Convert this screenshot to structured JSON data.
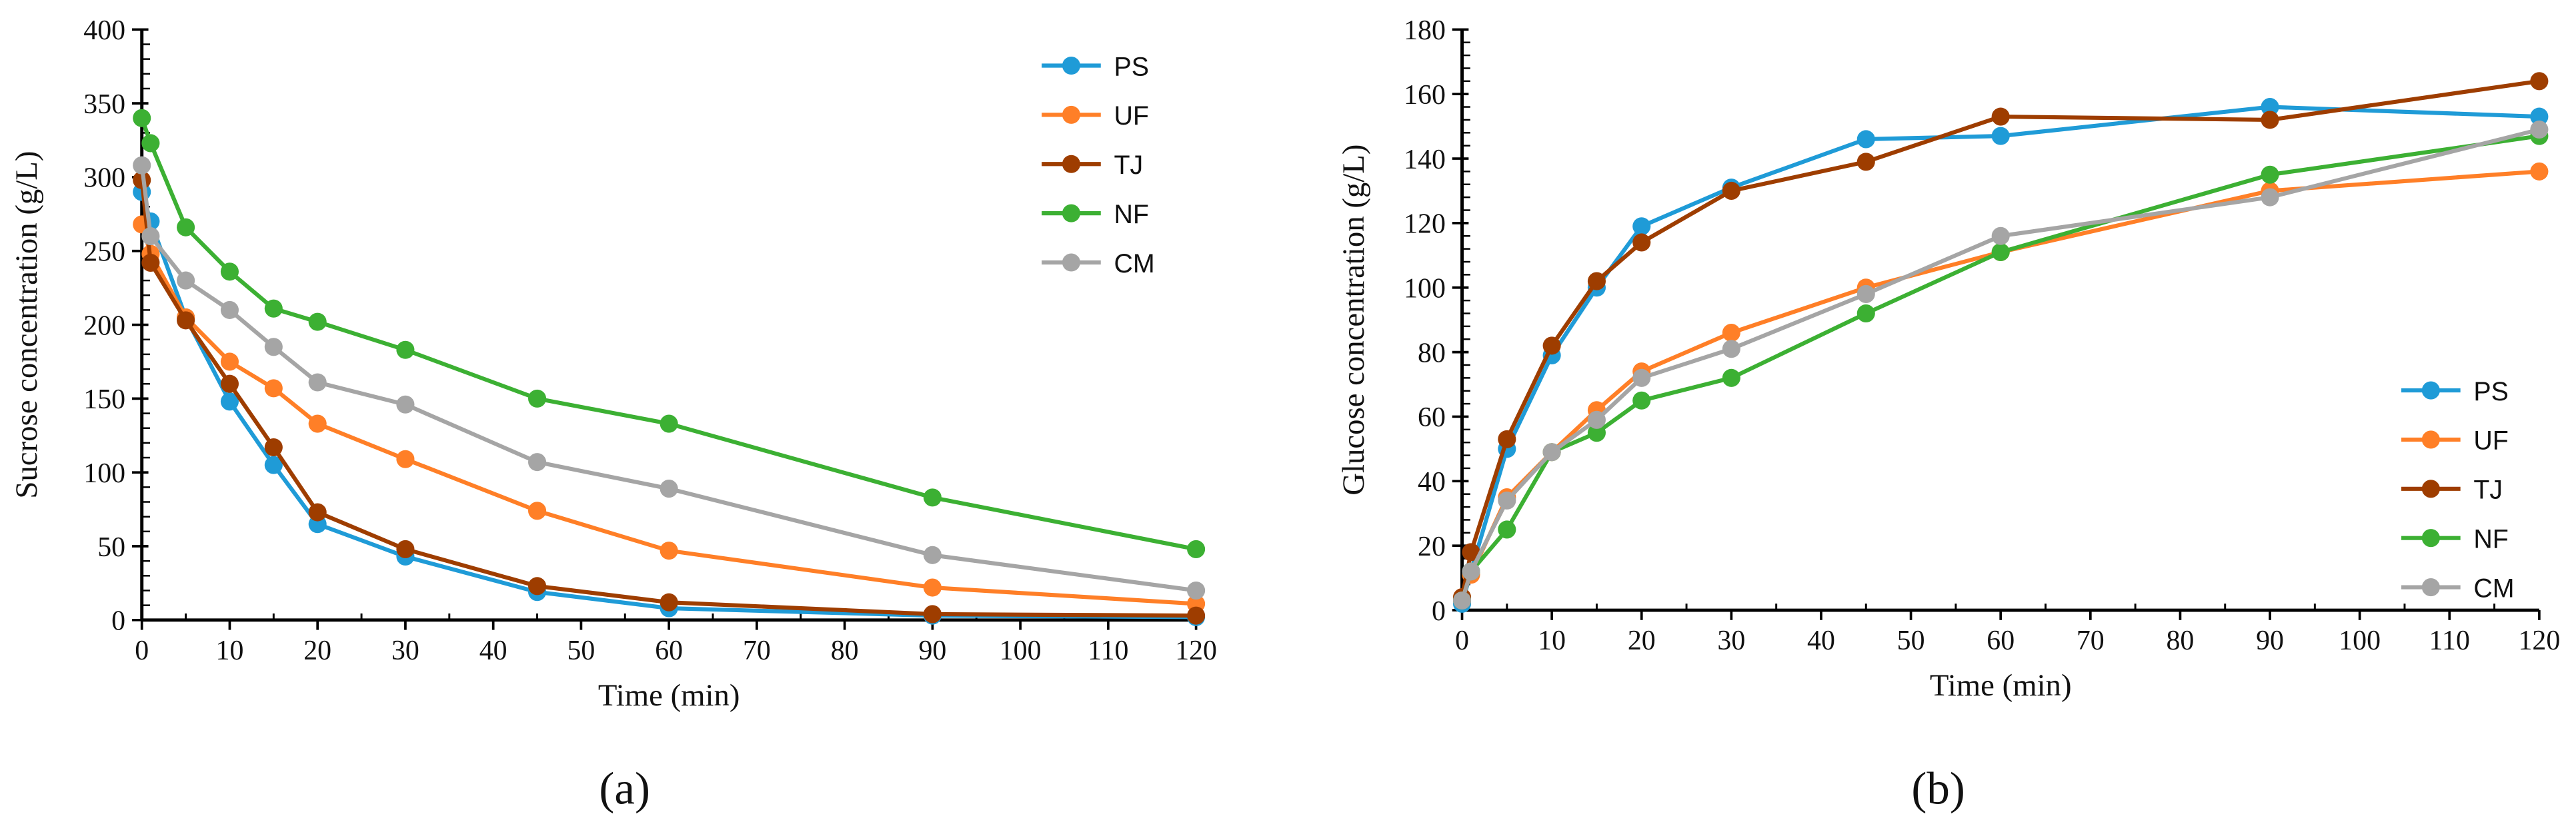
{
  "chart_data": [
    {
      "type": "line",
      "panel_label": "(a)",
      "xlabel": "Time (min)",
      "ylabel": "Sucrose concentration (g/L)",
      "xlim": [
        0,
        120
      ],
      "ylim": [
        0,
        400
      ],
      "xticks": [
        0,
        10,
        20,
        30,
        40,
        50,
        60,
        70,
        80,
        90,
        100,
        110,
        120
      ],
      "yticks": [
        0,
        50,
        100,
        150,
        200,
        250,
        300,
        350,
        400
      ],
      "grid": false,
      "legend_position": "top-right",
      "x": [
        0,
        1,
        5,
        10,
        15,
        20,
        30,
        45,
        60,
        90,
        120
      ],
      "series": [
        {
          "name": "PS",
          "color": "#1f9bd7",
          "values": [
            290,
            270,
            205,
            148,
            105,
            65,
            43,
            19,
            8,
            3,
            2
          ]
        },
        {
          "name": "UF",
          "color": "#ff7f27",
          "values": [
            268,
            248,
            205,
            175,
            157,
            133,
            109,
            74,
            47,
            22,
            11
          ]
        },
        {
          "name": "TJ",
          "color": "#9e3d00",
          "values": [
            298,
            242,
            203,
            160,
            117,
            73,
            48,
            23,
            12,
            4,
            3
          ]
        },
        {
          "name": "NF",
          "color": "#3cb033",
          "values": [
            340,
            323,
            266,
            236,
            211,
            202,
            183,
            150,
            133,
            83,
            48
          ]
        },
        {
          "name": "CM",
          "color": "#a5a5a5",
          "values": [
            308,
            260,
            230,
            210,
            185,
            161,
            146,
            107,
            89,
            44,
            20
          ]
        }
      ]
    },
    {
      "type": "line",
      "panel_label": "(b)",
      "xlabel": "Time (min)",
      "ylabel": "Glucose concentration (g/L)",
      "xlim": [
        0,
        120
      ],
      "ylim": [
        0,
        180
      ],
      "xticks": [
        0,
        10,
        20,
        30,
        40,
        50,
        60,
        70,
        80,
        90,
        100,
        110,
        120
      ],
      "yticks": [
        0,
        20,
        40,
        60,
        80,
        100,
        120,
        140,
        160,
        180
      ],
      "grid": false,
      "legend_position": "bottom-right",
      "x": [
        0,
        1,
        5,
        10,
        15,
        20,
        30,
        45,
        60,
        90,
        120
      ],
      "series": [
        {
          "name": "PS",
          "color": "#1f9bd7",
          "values": [
            2,
            12,
            50,
            79,
            100,
            119,
            131,
            146,
            147,
            156,
            153
          ]
        },
        {
          "name": "UF",
          "color": "#ff7f27",
          "values": [
            4,
            11,
            35,
            49,
            62,
            74,
            86,
            100,
            111,
            130,
            136
          ]
        },
        {
          "name": "TJ",
          "color": "#9e3d00",
          "values": [
            4,
            18,
            53,
            82,
            102,
            114,
            130,
            139,
            153,
            152,
            164
          ]
        },
        {
          "name": "NF",
          "color": "#3cb033",
          "values": [
            3,
            12,
            25,
            49,
            55,
            65,
            72,
            92,
            111,
            135,
            147
          ]
        },
        {
          "name": "CM",
          "color": "#a5a5a5",
          "values": [
            3,
            12,
            34,
            49,
            59,
            72,
            81,
            98,
            116,
            128,
            149
          ]
        }
      ]
    }
  ]
}
